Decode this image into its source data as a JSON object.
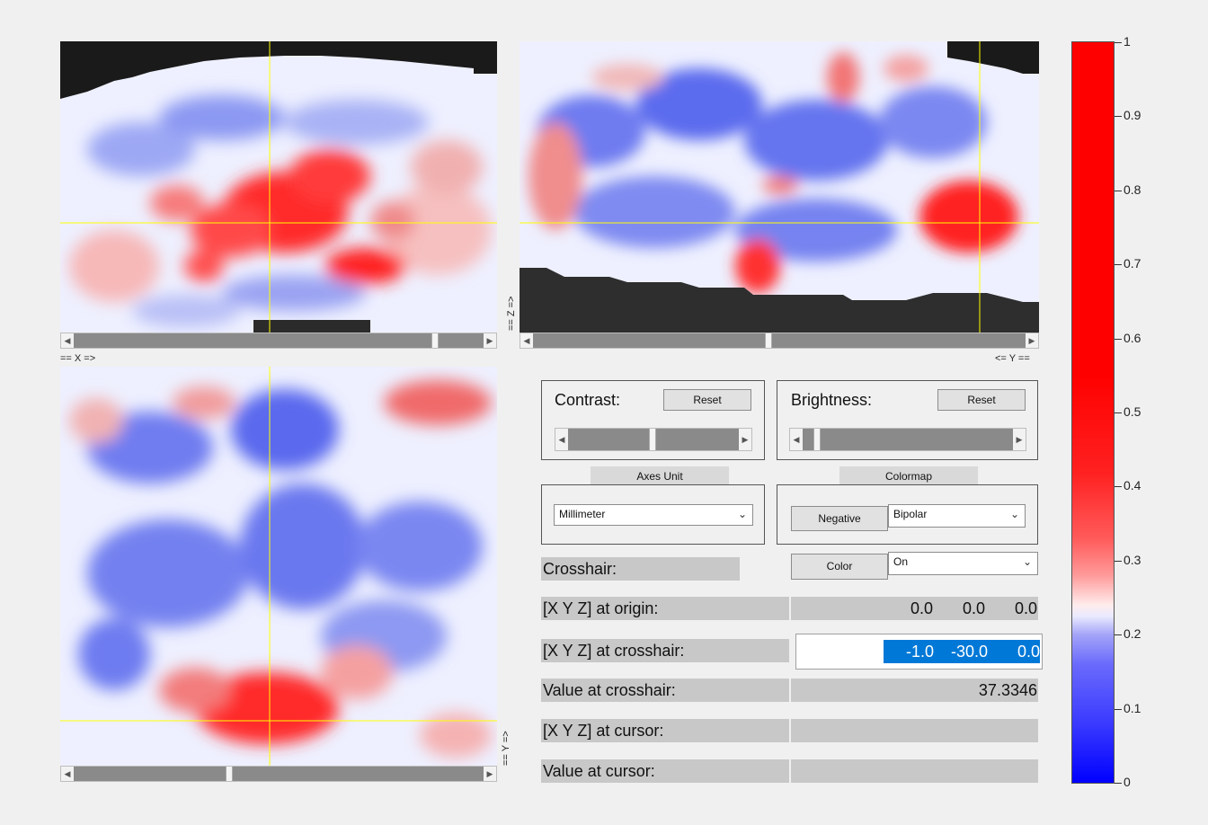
{
  "views": {
    "axial": {
      "bottom_label": "== X =>",
      "scroll_thumb_fraction": 0.85
    },
    "sagittal": {
      "left_label": "== Z =>",
      "bottom_label": "<= Y ==",
      "scroll_thumb_fraction": 0.48
    },
    "coronal": {
      "right_label": "== Y =>",
      "scroll_thumb_fraction": 0.38
    }
  },
  "contrast": {
    "title": "Contrast:",
    "reset_label": "Reset",
    "slider_fraction": 0.5
  },
  "brightness": {
    "title": "Brightness:",
    "reset_label": "Reset",
    "slider_fraction": 0.1
  },
  "axes_unit": {
    "header": "Axes Unit",
    "selected": "Millimeter"
  },
  "colormap": {
    "header": "Colormap",
    "negative_label": "Negative",
    "selected": "Bipolar"
  },
  "crosshair": {
    "label": "Crosshair:",
    "color_button": "Color",
    "state": "On"
  },
  "readouts": {
    "origin": {
      "label": "[X Y Z] at origin:",
      "x": "0.0",
      "y": "0.0",
      "z": "0.0"
    },
    "crosshair_pos": {
      "label": "[X Y Z] at crosshair:",
      "x": "-1.0",
      "y": "-30.0",
      "z": "0.0"
    },
    "crosshair_value": {
      "label": "Value at crosshair:",
      "value": "37.3346"
    },
    "cursor_pos": {
      "label": "[X Y Z] at cursor:"
    },
    "cursor_value": {
      "label": "Value at cursor:"
    }
  },
  "colorbar": {
    "ticks": [
      "1",
      "0.9",
      "0.8",
      "0.7",
      "0.6",
      "0.5",
      "0.4",
      "0.3",
      "0.2",
      "0.1",
      "0"
    ],
    "colors": {
      "max": "#ff0000",
      "mid": "#ffffff",
      "min": "#0000ff"
    }
  },
  "colors": {
    "crosshair": "#ffff00",
    "selection": "#0078d7"
  }
}
